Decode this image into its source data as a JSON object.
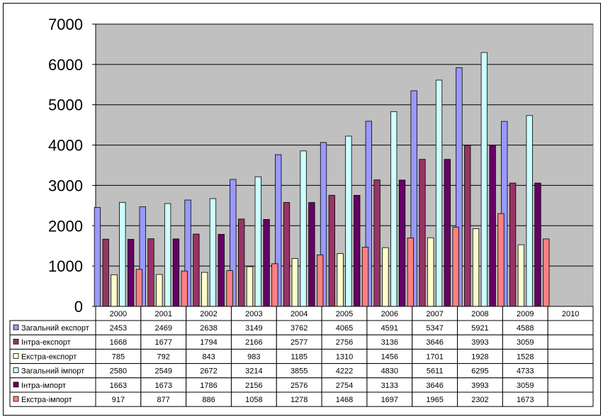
{
  "chart_data": {
    "type": "bar",
    "categories": [
      "2000",
      "2001",
      "2002",
      "2003",
      "2004",
      "2005",
      "2006",
      "2007",
      "2008",
      "2009",
      "2010"
    ],
    "ylim": [
      0,
      7000
    ],
    "yticks": [
      "0",
      "1000",
      "2000",
      "3000",
      "4000",
      "5000",
      "6000",
      "7000"
    ],
    "grid": true,
    "legend": "data-table",
    "plot_background": "#C0C0C0",
    "series": [
      {
        "name": "Загальний експорт",
        "color": "#9999FF",
        "values": [
          2453,
          2469,
          2638,
          3149,
          3762,
          4065,
          4591,
          5347,
          5921,
          4588,
          null
        ]
      },
      {
        "name": "Інтра-експорт",
        "color": "#993366",
        "values": [
          1668,
          1677,
          1794,
          2166,
          2577,
          2756,
          3136,
          3646,
          3993,
          3059,
          null
        ]
      },
      {
        "name": "Екстра-експорт",
        "color": "#FFFFCC",
        "values": [
          785,
          792,
          843,
          983,
          1185,
          1310,
          1456,
          1701,
          1928,
          1528,
          null
        ]
      },
      {
        "name": "Загальний імпорт",
        "color": "#CCFFFF",
        "values": [
          2580,
          2549,
          2672,
          3214,
          3855,
          4222,
          4830,
          5611,
          6295,
          4733,
          null
        ]
      },
      {
        "name": "Інтра-імпорт",
        "color": "#660066",
        "values": [
          1663,
          1673,
          1786,
          2156,
          2576,
          2754,
          3133,
          3646,
          3993,
          3059,
          null
        ]
      },
      {
        "name": "Екстра-імпорт",
        "color": "#FF8080",
        "values": [
          917,
          877,
          886,
          1058,
          1278,
          1468,
          1697,
          1965,
          2302,
          1673,
          null
        ]
      }
    ]
  }
}
